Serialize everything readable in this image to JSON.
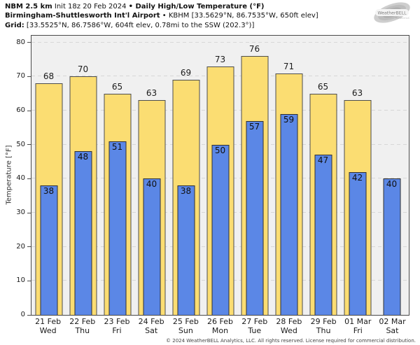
{
  "header": {
    "line1": {
      "bold1": "NBM 2.5 km",
      "regular1": " Init 18z 20 Feb 2024 ",
      "bold2": "• Daily High/Low Temperature (°F)"
    },
    "line2": {
      "bold1": "Birmingham-Shuttlesworth Int'l Airport",
      "regular1": " • KBHM [33.5629°N, 86.7535°W, 650ft elev]"
    },
    "line3": {
      "bold1": "Grid:",
      "regular1": " [33.5525°N, 86.7586°W, 604ft elev, 0.78mi to the SSW (202.3°)]"
    }
  },
  "logo": {
    "text": "WeatherBELL",
    "subtext": "Analytics LLC"
  },
  "chart_data": {
    "type": "bar",
    "title": "Daily High/Low Temperature (°F)",
    "model_run": "NBM 2.5 km Init 18z 20 Feb 2024",
    "location": "Birmingham-Shuttlesworth Int'l Airport (KBHM)",
    "ylabel": "Temperature [°F]",
    "ylim": [
      0,
      82
    ],
    "yticks": [
      0,
      10,
      20,
      30,
      40,
      50,
      60,
      70,
      80
    ],
    "grid": true,
    "legend_position": "none",
    "categories": [
      {
        "date": "21 Feb",
        "day": "Wed"
      },
      {
        "date": "22 Feb",
        "day": "Thu"
      },
      {
        "date": "23 Feb",
        "day": "Fri"
      },
      {
        "date": "24 Feb",
        "day": "Sat"
      },
      {
        "date": "25 Feb",
        "day": "Sun"
      },
      {
        "date": "26 Feb",
        "day": "Mon"
      },
      {
        "date": "27 Feb",
        "day": "Tue"
      },
      {
        "date": "28 Feb",
        "day": "Wed"
      },
      {
        "date": "29 Feb",
        "day": "Thu"
      },
      {
        "date": "01 Mar",
        "day": "Fri"
      },
      {
        "date": "02 Mar",
        "day": "Sat"
      }
    ],
    "series": [
      {
        "name": "Daily High",
        "color": "#fbdd72",
        "values": [
          68,
          70,
          65,
          63,
          69,
          73,
          76,
          71,
          65,
          63,
          null
        ]
      },
      {
        "name": "Daily Low",
        "color": "#5b87e6",
        "values": [
          38,
          48,
          51,
          40,
          38,
          50,
          57,
          59,
          47,
          42,
          40
        ]
      }
    ]
  },
  "footer": {
    "copyright": "© 2024 WeatherBELL Analytics, LLC. All rights reserved. License required for commercial distribution."
  },
  "colors": {
    "plot_bg": "#f0f0f0",
    "grid": "#d7d7d7",
    "axis": "#4a4a4a",
    "high_fill": "#fbdd72",
    "low_fill": "#5b87e6"
  }
}
